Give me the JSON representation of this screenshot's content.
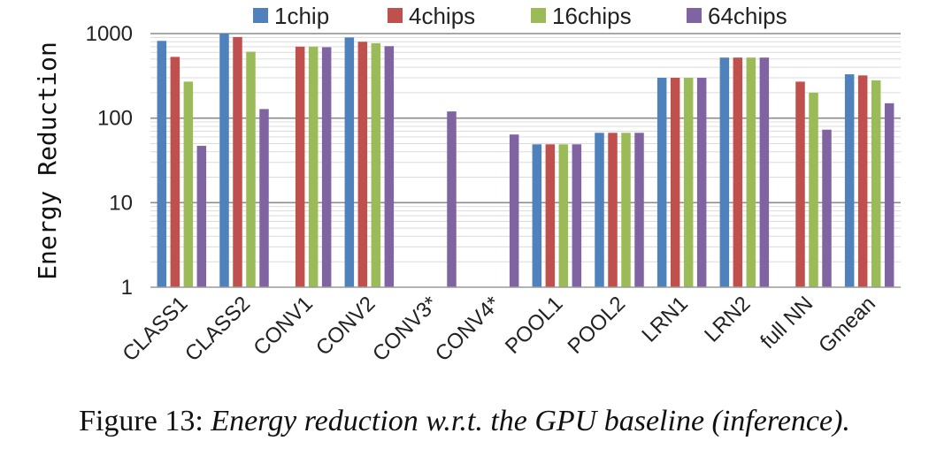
{
  "chart_data": {
    "type": "bar",
    "ylabel": "Energy Reduction",
    "yscale": "log",
    "ylim": [
      1,
      1000
    ],
    "yticks": [
      "1",
      "10",
      "100",
      "1000"
    ],
    "grid": true,
    "legend_position": "top",
    "categories": [
      "CLASS1",
      "CLASS2",
      "CONV1",
      "CONV2",
      "CONV3*",
      "CONV4*",
      "POOL1",
      "POOL2",
      "LRN1",
      "LRN2",
      "full NN",
      "Gmean"
    ],
    "series": [
      {
        "name": "1chip",
        "color": "#4f81bd",
        "values": [
          820,
          1000,
          null,
          900,
          null,
          null,
          49,
          67,
          300,
          520,
          null,
          330
        ]
      },
      {
        "name": "4chips",
        "color": "#c0504d",
        "values": [
          530,
          910,
          700,
          800,
          null,
          null,
          49,
          67,
          300,
          520,
          270,
          320
        ]
      },
      {
        "name": "16chips",
        "color": "#9bbb59",
        "values": [
          270,
          610,
          700,
          770,
          null,
          null,
          49,
          67,
          300,
          520,
          200,
          280
        ]
      },
      {
        "name": "64chips",
        "color": "#8064a2",
        "values": [
          47,
          128,
          690,
          710,
          120,
          64,
          49,
          67,
          300,
          520,
          73,
          150
        ]
      }
    ]
  },
  "caption": {
    "prefix": "Figure 13:",
    "text": "Energy reduction w.r.t. the GPU baseline (inference)."
  }
}
